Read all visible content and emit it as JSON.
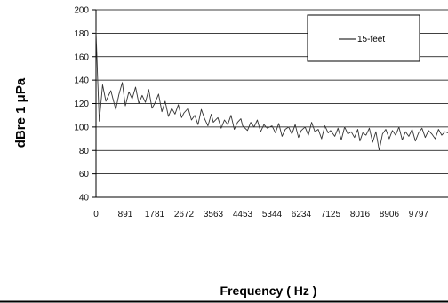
{
  "chart_data": {
    "type": "line",
    "title": "",
    "xlabel": "Frequency ( Hz )",
    "ylabel": "dBre 1 μPa",
    "ylim": [
      40,
      200
    ],
    "yticks": [
      "200",
      "180",
      "160",
      "140",
      "120",
      "100",
      "80",
      "60",
      "40"
    ],
    "xlim": [
      0,
      10690
    ],
    "xticks": [
      "0",
      "891",
      "1781",
      "2672",
      "3563",
      "4453",
      "5344",
      "6234",
      "7125",
      "8016",
      "8906",
      "9797"
    ],
    "grid": true,
    "legend_position": "top-right",
    "series": [
      {
        "name": "15-feet",
        "color": "#333333",
        "x": [
          0,
          50,
          100,
          200,
          300,
          450,
          600,
          700,
          800,
          891,
          1000,
          1100,
          1200,
          1300,
          1400,
          1500,
          1600,
          1700,
          1781,
          1900,
          2000,
          2100,
          2200,
          2300,
          2400,
          2500,
          2600,
          2672,
          2800,
          2900,
          3000,
          3100,
          3200,
          3300,
          3400,
          3500,
          3563,
          3700,
          3800,
          3900,
          4000,
          4100,
          4200,
          4300,
          4400,
          4453,
          4600,
          4700,
          4800,
          4900,
          5000,
          5100,
          5200,
          5344,
          5450,
          5550,
          5650,
          5750,
          5850,
          5950,
          6050,
          6150,
          6234,
          6350,
          6450,
          6550,
          6650,
          6750,
          6850,
          6950,
          7050,
          7125,
          7250,
          7350,
          7450,
          7550,
          7650,
          7750,
          7850,
          7950,
          8016,
          8100,
          8200,
          8300,
          8400,
          8500,
          8600,
          8700,
          8800,
          8906,
          9000,
          9100,
          9200,
          9300,
          9400,
          9500,
          9600,
          9700,
          9797,
          9900,
          10000,
          10100,
          10200,
          10300,
          10400,
          10500,
          10600,
          10690
        ],
        "y": [
          182,
          140,
          105,
          136,
          122,
          131,
          115,
          128,
          138,
          118,
          130,
          124,
          134,
          120,
          127,
          121,
          132,
          116,
          120,
          128,
          113,
          122,
          109,
          116,
          111,
          119,
          108,
          112,
          116,
          106,
          110,
          102,
          115,
          107,
          101,
          111,
          104,
          108,
          99,
          106,
          102,
          110,
          98,
          104,
          107,
          101,
          97,
          104,
          100,
          106,
          96,
          102,
          99,
          101,
          95,
          103,
          92,
          98,
          100,
          94,
          102,
          91,
          97,
          100,
          93,
          104,
          96,
          98,
          90,
          101,
          95,
          97,
          92,
          99,
          89,
          100,
          94,
          96,
          91,
          98,
          88,
          95,
          93,
          99,
          87,
          96,
          80,
          94,
          98,
          90,
          97,
          93,
          100,
          89,
          96,
          92,
          98,
          88,
          95,
          99,
          91,
          97,
          94,
          90,
          98,
          93,
          96,
          95
        ]
      }
    ]
  }
}
